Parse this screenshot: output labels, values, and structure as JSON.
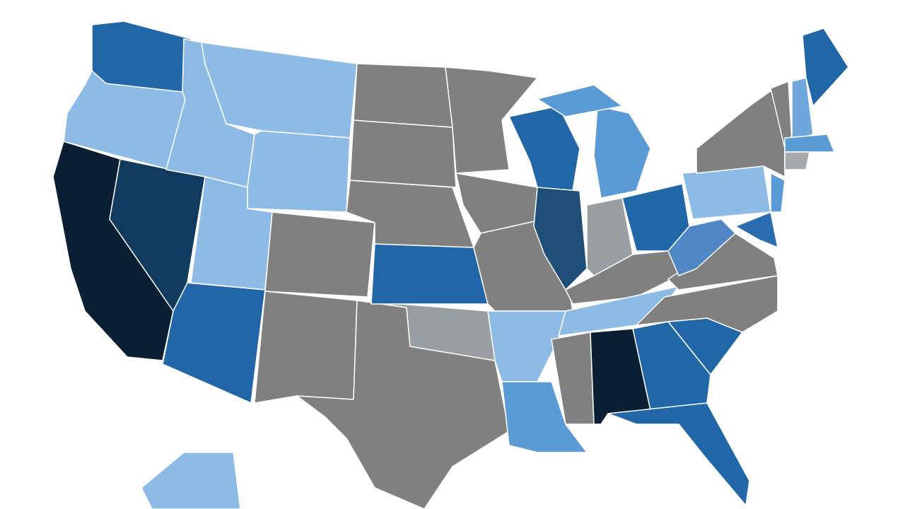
{
  "regions": [
    {
      "color": "#2167a8"
    },
    {
      "color": "#8dbbe6"
    },
    {
      "color": "#0a1f33"
    },
    {
      "color": "#103a5e"
    },
    {
      "color": "#8dbbe6"
    },
    {
      "color": "#8dbbe6"
    },
    {
      "color": "#8dbbe6"
    },
    {
      "color": "#8dbbe6"
    },
    {
      "color": "#2167a8"
    },
    {
      "color": "#808080"
    },
    {
      "color": "#808080"
    },
    {
      "color": "#808080"
    },
    {
      "color": "#999ea3"
    },
    {
      "color": "#2167a8"
    },
    {
      "color": "#808080"
    },
    {
      "color": "#808080"
    },
    {
      "color": "#808080"
    },
    {
      "color": "#808080"
    },
    {
      "color": "#808080"
    },
    {
      "color": "#808080"
    },
    {
      "color": "#8dbbe6"
    },
    {
      "color": "#5b9bd5"
    },
    {
      "color": "#2167a8"
    },
    {
      "color": "#1f4e79"
    },
    {
      "color": "#5b9bd5"
    },
    {
      "color": "#5b9bd5"
    },
    {
      "color": "#999ea3"
    },
    {
      "color": "#2167a8"
    },
    {
      "color": "#808080"
    },
    {
      "color": "#8dbbe6"
    },
    {
      "color": "#808080"
    },
    {
      "color": "#0a1f33"
    },
    {
      "color": "#2167a8"
    },
    {
      "color": "#2167a8"
    },
    {
      "color": "#2167a8"
    },
    {
      "color": "#808080"
    },
    {
      "color": "#808080"
    },
    {
      "color": "#4f86c6"
    },
    {
      "color": "#8dbbe6"
    },
    {
      "color": "#808080"
    },
    {
      "color": "#5b9bd5"
    },
    {
      "color": "#2b6cb0"
    },
    {
      "color": "#808080"
    },
    {
      "color": "#6fa6dc"
    },
    {
      "color": "#2167a8"
    },
    {
      "color": "#5b9bd5"
    },
    {
      "color": "#a6aaae"
    },
    {
      "color": "#8dbbe6"
    }
  ]
}
